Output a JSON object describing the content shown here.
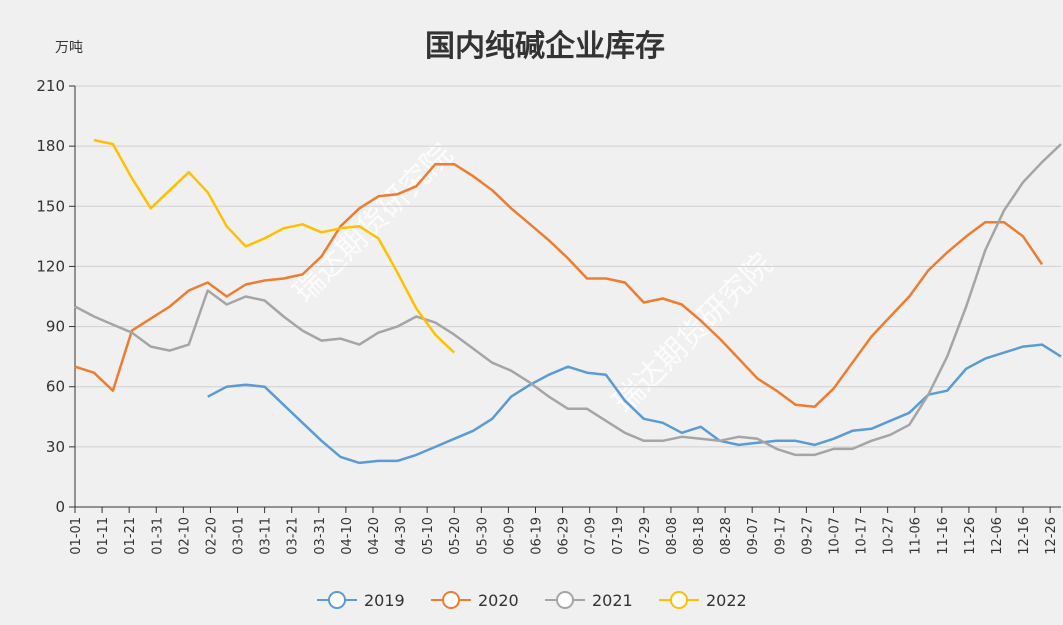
{
  "chart_data": {
    "type": "line",
    "title": "国内纯碱企业库存",
    "y_unit": "万吨",
    "watermark": "瑞达期货研究院",
    "x": [
      0,
      7,
      14,
      21,
      28,
      35,
      42,
      49,
      56,
      63,
      70,
      77,
      84,
      91,
      98,
      105,
      112,
      119,
      126,
      133,
      140,
      147,
      154,
      161,
      168,
      175,
      182,
      189,
      196,
      203,
      210,
      217,
      224,
      231,
      238,
      245,
      252,
      259,
      266,
      273,
      280,
      287,
      294,
      301,
      308,
      315,
      322,
      329,
      336,
      343,
      350,
      357,
      364
    ],
    "xlim": [
      0,
      364
    ],
    "xticks": [
      {
        "value": 0,
        "label": "01-01"
      },
      {
        "value": 10,
        "label": "01-11"
      },
      {
        "value": 20,
        "label": "01-21"
      },
      {
        "value": 30,
        "label": "01-31"
      },
      {
        "value": 40,
        "label": "02-10"
      },
      {
        "value": 50,
        "label": "02-20"
      },
      {
        "value": 60,
        "label": "03-01"
      },
      {
        "value": 70,
        "label": "03-11"
      },
      {
        "value": 80,
        "label": "03-21"
      },
      {
        "value": 90,
        "label": "03-31"
      },
      {
        "value": 100,
        "label": "04-10"
      },
      {
        "value": 110,
        "label": "04-20"
      },
      {
        "value": 120,
        "label": "04-30"
      },
      {
        "value": 130,
        "label": "05-10"
      },
      {
        "value": 140,
        "label": "05-20"
      },
      {
        "value": 150,
        "label": "05-30"
      },
      {
        "value": 160,
        "label": "06-09"
      },
      {
        "value": 170,
        "label": "06-19"
      },
      {
        "value": 180,
        "label": "06-29"
      },
      {
        "value": 190,
        "label": "07-09"
      },
      {
        "value": 200,
        "label": "07-19"
      },
      {
        "value": 210,
        "label": "07-29"
      },
      {
        "value": 220,
        "label": "08-08"
      },
      {
        "value": 230,
        "label": "08-18"
      },
      {
        "value": 240,
        "label": "08-28"
      },
      {
        "value": 250,
        "label": "09-07"
      },
      {
        "value": 260,
        "label": "09-17"
      },
      {
        "value": 270,
        "label": "09-27"
      },
      {
        "value": 280,
        "label": "10-07"
      },
      {
        "value": 290,
        "label": "10-17"
      },
      {
        "value": 300,
        "label": "10-27"
      },
      {
        "value": 310,
        "label": "11-06"
      },
      {
        "value": 320,
        "label": "11-16"
      },
      {
        "value": 330,
        "label": "11-26"
      },
      {
        "value": 340,
        "label": "12-06"
      },
      {
        "value": 350,
        "label": "12-16"
      },
      {
        "value": 360,
        "label": "12-26"
      }
    ],
    "ylim": [
      0,
      210
    ],
    "yticks": [
      0,
      30,
      60,
      90,
      120,
      150,
      180,
      210
    ],
    "grid": true,
    "legend": "bottom",
    "series": [
      {
        "name": "2019",
        "color": "#5b9bd5",
        "values": [
          null,
          null,
          null,
          null,
          null,
          null,
          null,
          55,
          60,
          61,
          60,
          51,
          42,
          33,
          25,
          22,
          23,
          23,
          26,
          30,
          34,
          38,
          44,
          55,
          61,
          66,
          70,
          67,
          66,
          53,
          44,
          42,
          37,
          40,
          33,
          31,
          32,
          33,
          33,
          31,
          34,
          38,
          39,
          43,
          47,
          56,
          58,
          69,
          74,
          77,
          80,
          81,
          75
        ]
      },
      {
        "name": "2020",
        "color": "#ed7d31",
        "values": [
          70,
          67,
          58,
          88,
          94,
          100,
          108,
          112,
          105,
          111,
          113,
          114,
          116,
          125,
          140,
          149,
          155,
          156,
          160,
          171,
          171,
          165,
          158,
          149,
          141,
          133,
          124,
          114,
          114,
          112,
          102,
          104,
          101,
          93,
          84,
          74,
          64,
          58,
          51,
          50,
          59,
          72,
          85,
          95,
          105,
          118,
          127,
          135,
          142,
          142,
          135,
          121,
          null
        ]
      },
      {
        "name": "2021",
        "color": "#a5a5a5",
        "values": [
          100,
          95,
          91,
          87,
          80,
          78,
          81,
          108,
          101,
          105,
          103,
          95,
          88,
          83,
          84,
          81,
          87,
          90,
          95,
          92,
          86,
          79,
          72,
          68,
          62,
          55,
          49,
          49,
          43,
          37,
          33,
          33,
          35,
          34,
          33,
          35,
          34,
          29,
          26,
          26,
          29,
          29,
          33,
          36,
          41,
          56,
          75,
          100,
          128,
          148,
          162,
          172,
          181
        ]
      },
      {
        "name": "2022",
        "color": "#ffc000",
        "values": [
          null,
          183,
          181,
          164,
          149,
          158,
          167,
          157,
          140,
          130,
          134,
          139,
          141,
          137,
          139,
          140,
          134,
          117,
          99,
          86,
          77,
          null,
          null,
          null,
          null,
          null,
          null,
          null,
          null,
          null,
          null,
          null,
          null,
          null,
          null,
          null,
          null,
          null,
          null,
          null,
          null,
          null,
          null,
          null,
          null,
          null,
          null,
          null,
          null,
          null,
          null,
          null,
          null
        ]
      }
    ]
  }
}
